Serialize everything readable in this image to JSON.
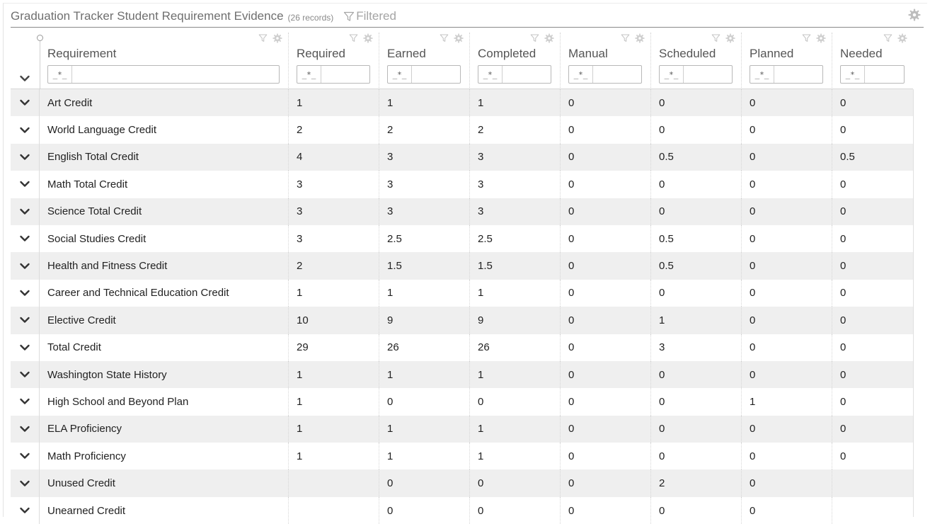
{
  "panel": {
    "title": "Graduation Tracker Student Requirement Evidence",
    "record_count": "(26 records)",
    "filtered_label": "Filtered"
  },
  "columns": [
    {
      "key": "requirement",
      "label": "Requirement",
      "filter_op": "_*_",
      "filter_value": ""
    },
    {
      "key": "required",
      "label": "Required",
      "filter_op": "_*_",
      "filter_value": ""
    },
    {
      "key": "earned",
      "label": "Earned",
      "filter_op": "_*_",
      "filter_value": ""
    },
    {
      "key": "completed",
      "label": "Completed",
      "filter_op": "_*_",
      "filter_value": ""
    },
    {
      "key": "manual",
      "label": "Manual",
      "filter_op": "_*_",
      "filter_value": ""
    },
    {
      "key": "scheduled",
      "label": "Scheduled",
      "filter_op": "_*_",
      "filter_value": ""
    },
    {
      "key": "planned",
      "label": "Planned",
      "filter_op": "_*_",
      "filter_value": ""
    },
    {
      "key": "needed",
      "label": "Needed",
      "filter_op": "_*_",
      "filter_value": ""
    }
  ],
  "rows": [
    [
      "Art Credit",
      "1",
      "1",
      "1",
      "0",
      "0",
      "0",
      "0"
    ],
    [
      "World Language Credit",
      "2",
      "2",
      "2",
      "0",
      "0",
      "0",
      "0"
    ],
    [
      "English Total Credit",
      "4",
      "3",
      "3",
      "0",
      "0.5",
      "0",
      "0.5"
    ],
    [
      "Math Total Credit",
      "3",
      "3",
      "3",
      "0",
      "0",
      "0",
      "0"
    ],
    [
      "Science Total Credit",
      "3",
      "3",
      "3",
      "0",
      "0",
      "0",
      "0"
    ],
    [
      "Social Studies Credit",
      "3",
      "2.5",
      "2.5",
      "0",
      "0.5",
      "0",
      "0"
    ],
    [
      "Health and Fitness Credit",
      "2",
      "1.5",
      "1.5",
      "0",
      "0.5",
      "0",
      "0"
    ],
    [
      "Career and Technical Education Credit",
      "1",
      "1",
      "1",
      "0",
      "0",
      "0",
      "0"
    ],
    [
      "Elective Credit",
      "10",
      "9",
      "9",
      "0",
      "1",
      "0",
      "0"
    ],
    [
      "Total Credit",
      "29",
      "26",
      "26",
      "0",
      "3",
      "0",
      "0"
    ],
    [
      "Washington State History",
      "1",
      "1",
      "1",
      "0",
      "0",
      "0",
      "0"
    ],
    [
      "High School and Beyond Plan",
      "1",
      "0",
      "0",
      "0",
      "0",
      "1",
      "0"
    ],
    [
      "ELA Proficiency",
      "1",
      "1",
      "1",
      "0",
      "0",
      "0",
      "0"
    ],
    [
      "Math Proficiency",
      "1",
      "1",
      "1",
      "0",
      "0",
      "0",
      "0"
    ],
    [
      "Unused Credit",
      "",
      "0",
      "0",
      "0",
      "2",
      "0",
      ""
    ],
    [
      "Unearned Credit",
      "",
      "0",
      "0",
      "0",
      "0",
      "0",
      ""
    ]
  ],
  "icons": {
    "filter": "filter-funnel-icon",
    "settings": "gear-icon",
    "expand": "chevron-down-icon"
  },
  "colors": {
    "stripe": "#efefef",
    "header_text": "#555555",
    "title_text": "#6f6f6f"
  }
}
